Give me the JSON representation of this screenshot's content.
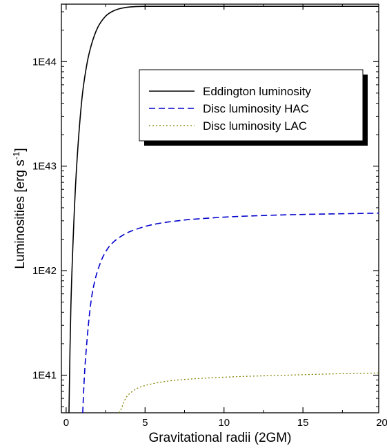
{
  "chart_data": {
    "type": "line",
    "xlabel": "Gravitational radii (2GM)",
    "ylabel": "Luminosities [erg s⁻¹]",
    "ylabel_main": "Luminosities [erg s",
    "ylabel_sup": "-1",
    "ylabel_end": "]",
    "xlim": [
      -0.3,
      19.8
    ],
    "ylim_log10": [
      40.64,
      44.55
    ],
    "y_scale": "log",
    "x_ticks": [
      0,
      5,
      10,
      15,
      20
    ],
    "x_tick_labels": [
      "0",
      "5",
      "10",
      "15",
      "20"
    ],
    "y_ticks": [
      1e+41,
      1e+42,
      1e+43,
      1e+44
    ],
    "y_tick_labels": [
      "1E41",
      "1E42",
      "1E43",
      "1E44"
    ],
    "legend_placement": "top-right",
    "grid": false,
    "series": [
      {
        "name": "Eddington luminosity",
        "color": "#000000",
        "dash": "solid",
        "x": [
          0.18,
          0.3,
          0.5,
          0.7,
          1.0,
          1.3,
          1.6,
          2.0,
          2.5,
          3.0,
          3.5,
          4.0,
          4.5,
          5.0,
          6.0,
          8.0,
          10.0,
          12.0,
          15.0,
          19.8
        ],
        "y": [
          4e+40,
          4.5e+41,
          3.2e+42,
          1.2e+43,
          4.4e+43,
          9.2e+43,
          1.45e+44,
          2.12e+44,
          2.72e+44,
          3.06e+44,
          3.24e+44,
          3.33e+44,
          3.37e+44,
          3.38e+44,
          3.38e+44,
          3.38e+44,
          3.38e+44,
          3.38e+44,
          3.38e+44,
          3.38e+44
        ]
      },
      {
        "name": "Disc luminosity HAC",
        "color": "#0000cc",
        "dash": "dashed",
        "x": [
          1.05,
          1.2,
          1.5,
          1.8,
          2.2,
          2.6,
          3.0,
          3.5,
          4.0,
          5.0,
          6.0,
          7.0,
          8.0,
          10.0,
          12.0,
          15.0,
          19.8
        ],
        "y": [
          4e+40,
          1.25e+41,
          4.1e+41,
          7.8e+41,
          1.22e+42,
          1.6e+42,
          1.88e+42,
          2.14e+42,
          2.35e+42,
          2.65e+42,
          2.85e+42,
          2.99e+42,
          3.1e+42,
          3.25e+42,
          3.35e+42,
          3.45e+42,
          3.55e+42
        ]
      },
      {
        "name": "Disc luminosity LAC",
        "color": "#808000",
        "dash": "dotted",
        "x": [
          3.35,
          3.5,
          3.8,
          4.2,
          4.7,
          5.5,
          6.5,
          7.5,
          9.0,
          11.0,
          13.0,
          15.0,
          17.0,
          19.8
        ],
        "y": [
          4e+40,
          4.8e+40,
          6.1e+40,
          7e+40,
          7.7e+40,
          8.3e+40,
          8.8e+40,
          9.1e+40,
          9.4e+40,
          9.7e+40,
          9.9e+40,
          1.01e+41,
          1.03e+41,
          1.05e+41
        ]
      }
    ]
  }
}
